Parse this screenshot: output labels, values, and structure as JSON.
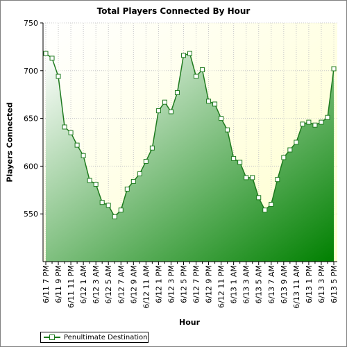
{
  "chart_data": {
    "type": "area",
    "title": "Total Players Connected By Hour",
    "xlabel": "Hour",
    "ylabel": "Players Connected",
    "ylim": [
      500,
      750
    ],
    "yticks": [
      550,
      600,
      650,
      700,
      750
    ],
    "grid": true,
    "legend_position": "bottom-left",
    "colors": {
      "line": "#1e7a1e",
      "fill_dark": "#008000",
      "fill_light": "#ffffff",
      "plot_bg": "#ffffe0"
    },
    "x": [
      "6/11 7 PM",
      "6/11 8 PM",
      "6/11 9 PM",
      "6/11 10 PM",
      "6/11 11 PM",
      "6/12 12 AM",
      "6/12 1 AM",
      "6/12 2 AM",
      "6/12 3 AM",
      "6/12 4 AM",
      "6/12 5 AM",
      "6/12 6 AM",
      "6/12 7 AM",
      "6/12 8 AM",
      "6/12 9 AM",
      "6/12 10 AM",
      "6/12 11 AM",
      "6/12 12 PM",
      "6/12 1 PM",
      "6/12 2 PM",
      "6/12 3 PM",
      "6/12 4 PM",
      "6/12 5 PM",
      "6/12 6 PM",
      "6/12 7 PM",
      "6/12 8 PM",
      "6/12 9 PM",
      "6/12 10 PM",
      "6/12 11 PM",
      "6/13 12 AM",
      "6/13 1 AM",
      "6/13 2 AM",
      "6/13 3 AM",
      "6/13 4 AM",
      "6/13 5 AM",
      "6/13 6 AM",
      "6/13 7 AM",
      "6/13 8 AM",
      "6/13 9 AM",
      "6/13 10 AM",
      "6/13 11 AM",
      "6/13 12 PM",
      "6/13 1 PM",
      "6/13 2 PM",
      "6/13 3 PM",
      "6/13 4 PM",
      "6/13 5 PM"
    ],
    "tick_labels": [
      "6/11 7 PM",
      "6/11 9 PM",
      "6/11 11 PM",
      "6/12 1 AM",
      "6/12 3 AM",
      "6/12 5 AM",
      "6/12 7 AM",
      "6/12 9 AM",
      "6/12 11 AM",
      "6/12 1 PM",
      "6/12 3 PM",
      "6/12 5 PM",
      "6/12 7 PM",
      "6/12 9 PM",
      "6/12 11 PM",
      "6/13 1 AM",
      "6/13 3 AM",
      "6/13 5 AM",
      "6/13 7 AM",
      "6/13 9 AM",
      "6/13 11 AM",
      "6/13 1 PM",
      "6/13 3 PM",
      "6/13 5 PM"
    ],
    "series": [
      {
        "name": "Penultimate Destination",
        "values": [
          718,
          713,
          694,
          641,
          635,
          622,
          611,
          585,
          581,
          562,
          559,
          547,
          554,
          576,
          584,
          592,
          605,
          619,
          658,
          667,
          657,
          677,
          716,
          718,
          694,
          701,
          668,
          665,
          650,
          638,
          608,
          604,
          588,
          588,
          567,
          554,
          560,
          586,
          609,
          617,
          625,
          644,
          646,
          643,
          646,
          651,
          702
        ]
      }
    ]
  }
}
